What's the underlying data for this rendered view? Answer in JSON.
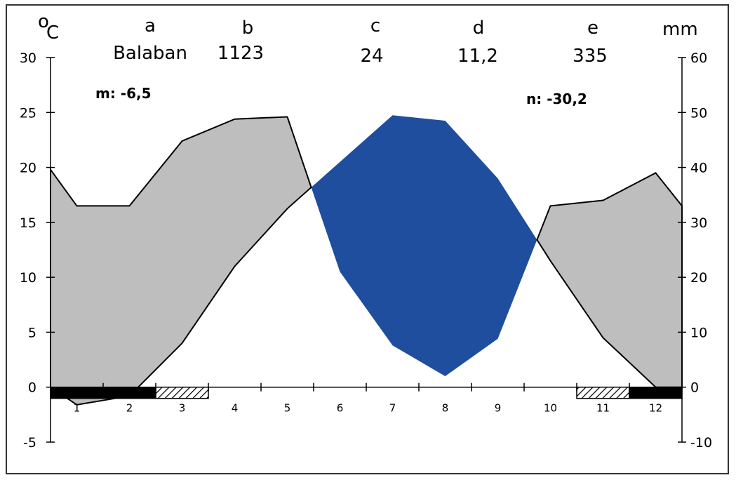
{
  "chart_data": {
    "type": "area",
    "header_letters": [
      "a",
      "b",
      "c",
      "d",
      "e"
    ],
    "header_values": [
      "Balaban",
      "1123",
      "24",
      "11,2",
      "335"
    ],
    "left_unit_sup": "o",
    "left_unit": "C",
    "right_unit": "mm",
    "annotation_m": "m: -6,5",
    "annotation_n": "n: -30,2",
    "x_categories": [
      "1",
      "2",
      "3",
      "4",
      "5",
      "6",
      "7",
      "8",
      "9",
      "10",
      "11",
      "12"
    ],
    "left_axis": {
      "ylim": [
        -5,
        30
      ],
      "ticks": [
        "30",
        "25",
        "20",
        "15",
        "10",
        "5",
        "0",
        "-5"
      ],
      "tick_values": [
        30,
        25,
        20,
        15,
        10,
        5,
        0,
        -5
      ]
    },
    "right_axis": {
      "ylim": [
        -10,
        60
      ],
      "ticks": [
        "60",
        "50",
        "40",
        "30",
        "20",
        "10",
        "0",
        "-10"
      ],
      "tick_values": [
        60,
        50,
        40,
        30,
        20,
        10,
        0,
        -10
      ]
    },
    "series": [
      {
        "axis": "left",
        "x": [
          0.5,
          1,
          2,
          3,
          4,
          5,
          6,
          7,
          8,
          9,
          10,
          11,
          12,
          12.5
        ],
        "values": [
          19.8,
          16.5,
          16.5,
          22.4,
          24.4,
          24.6,
          10.5,
          3.8,
          1.0,
          4.4,
          16.5,
          17.0,
          19.5,
          16.5
        ]
      },
      {
        "axis": "right",
        "x": [
          0.5,
          1,
          2,
          3,
          4,
          5,
          6,
          7,
          8,
          9,
          10,
          11,
          12,
          12.5
        ],
        "values": [
          0,
          -3.2,
          -1.6,
          8,
          22,
          32.5,
          41,
          49.5,
          48.5,
          38,
          23,
          9,
          0,
          0
        ]
      }
    ],
    "colors": {
      "wet": "#1F4E9E",
      "dry": "#BEBEBE",
      "line": "#000000",
      "bar_black": "#000000",
      "bar_hatch": "#000000"
    },
    "bars": [
      {
        "from": 0.5,
        "to": 2.5,
        "style": "solid"
      },
      {
        "from": 2.5,
        "to": 3.5,
        "style": "hatched"
      },
      {
        "from": 10.5,
        "to": 11.5,
        "style": "hatched"
      },
      {
        "from": 11.5,
        "to": 12.5,
        "style": "solid"
      }
    ]
  }
}
